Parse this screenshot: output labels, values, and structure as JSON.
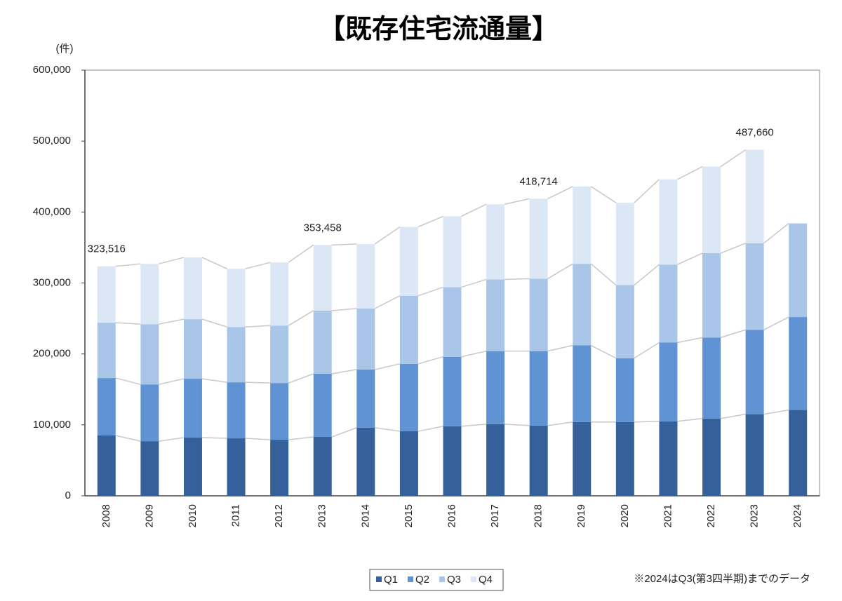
{
  "chart_data": {
    "type": "stacked_bar",
    "title": "【既存住宅流通量】",
    "y_unit": "(件)",
    "categories": [
      "2008",
      "2009",
      "2010",
      "2011",
      "2012",
      "2013",
      "2014",
      "2015",
      "2016",
      "2017",
      "2018",
      "2019",
      "2020",
      "2021",
      "2022",
      "2023",
      "2024"
    ],
    "series": [
      {
        "name": "Q1",
        "color": "#35609a",
        "values": [
          85000,
          77000,
          82000,
          81000,
          79000,
          83000,
          96000,
          91000,
          98000,
          101000,
          99000,
          104000,
          104000,
          105000,
          109000,
          115000,
          121000
        ]
      },
      {
        "name": "Q2",
        "color": "#5f93d3",
        "values": [
          81000,
          80000,
          83000,
          79000,
          80000,
          89000,
          82000,
          95000,
          98000,
          103000,
          105000,
          108000,
          90000,
          111000,
          114000,
          119000,
          131000
        ]
      },
      {
        "name": "Q3",
        "color": "#a9c6e8",
        "values": [
          78000,
          85000,
          84000,
          78000,
          81000,
          89000,
          86000,
          96000,
          98000,
          101000,
          102000,
          115000,
          103000,
          110000,
          119000,
          122000,
          132000
        ]
      },
      {
        "name": "Q4",
        "color": "#dce7f5",
        "values": [
          79516,
          85000,
          87000,
          82000,
          89000,
          92458,
          91000,
          97000,
          100000,
          106000,
          112714,
          109000,
          116000,
          120000,
          122000,
          131660,
          null
        ]
      }
    ],
    "annotations": [
      {
        "category": "2008",
        "value": 323516,
        "label": "323,516"
      },
      {
        "category": "2013",
        "value": 353458,
        "label": "353,458"
      },
      {
        "category": "2018",
        "value": 418714,
        "label": "418,714"
      },
      {
        "category": "2023",
        "value": 487660,
        "label": "487,660"
      }
    ],
    "ylim": [
      0,
      600000
    ],
    "yticks": [
      0,
      {
        "value": 100000,
        "label": "100,000"
      },
      {
        "value": 200000,
        "label": "200,000"
      },
      {
        "value": 300000,
        "label": "300,000"
      },
      {
        "value": 400000,
        "label": "400,000"
      },
      {
        "value": 500000,
        "label": "500,000"
      },
      {
        "value": 600000,
        "label": "600,000"
      }
    ],
    "grid": false,
    "legend": "bottom",
    "footnote": "※2024はQ3(第3四半期)までのデータ"
  }
}
